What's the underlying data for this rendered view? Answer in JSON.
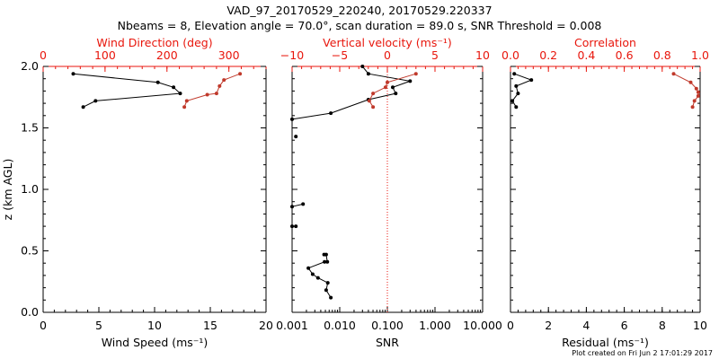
{
  "header": {
    "title_line1": "VAD_97_20170529_220240, 20170529.220337",
    "title_line2": "Nbeams = 8, Elevation angle = 70.0°, scan duration = 89.0 s, SNR Threshold = 0.008"
  },
  "footer": {
    "plot_created": "Plot created on Fri Jun  2 17:01:29 2017"
  },
  "colors": {
    "black_series": "#000000",
    "red_series": "#c0392b",
    "red_axis": "#e8160c",
    "guide_line": "#e8160c"
  },
  "chart_data": [
    {
      "type": "line",
      "panel": "left",
      "ylabel": "z (km AGL)",
      "ylim": [
        0.0,
        2.0
      ],
      "yticks": [
        0.0,
        0.5,
        1.0,
        1.5,
        2.0
      ],
      "ytick_labels": [
        "0.0",
        "0.5",
        "1.0",
        "1.5",
        "2.0"
      ],
      "grid": false,
      "bottom_axis": {
        "label": "Wind Speed (ms⁻¹)",
        "range": [
          0,
          20
        ],
        "ticks": [
          0,
          5,
          10,
          15,
          20
        ],
        "tick_labels": [
          "0",
          "5",
          "10",
          "15",
          "20"
        ]
      },
      "top_axis": {
        "label": "Wind Direction (deg)",
        "range": [
          0,
          360
        ],
        "ticks": [
          0,
          100,
          200,
          300
        ],
        "tick_labels": [
          "0",
          "100",
          "200",
          "300"
        ]
      },
      "series": [
        {
          "axis": "bottom",
          "color": "black",
          "points": [
            [
              2.7,
              1.94
            ],
            [
              10.3,
              1.87
            ],
            [
              11.7,
              1.83
            ],
            [
              12.3,
              1.78
            ],
            [
              4.7,
              1.72
            ],
            [
              3.6,
              1.67
            ]
          ]
        },
        {
          "axis": "top",
          "color": "red",
          "points": [
            [
              318,
              1.94
            ],
            [
              292,
              1.89
            ],
            [
              285,
              1.84
            ],
            [
              280,
              1.78
            ],
            [
              265,
              1.77
            ],
            [
              232,
              1.72
            ],
            [
              228,
              1.67
            ]
          ]
        }
      ]
    },
    {
      "type": "scatter",
      "panel": "middle",
      "grid": false,
      "bottom_axis": {
        "label": "SNR",
        "scale": "log",
        "range": [
          0.001,
          10
        ],
        "ticks": [
          0.001,
          0.01,
          0.1,
          1,
          10
        ],
        "tick_labels": [
          "0.001",
          "0.010",
          "0.100",
          "1.000",
          "10.000"
        ]
      },
      "top_axis": {
        "label": "Vertical velocity (ms⁻¹)",
        "range": [
          -10,
          10
        ],
        "ticks": [
          -10,
          -5,
          0,
          5,
          10
        ],
        "tick_labels": [
          "−10",
          "−5",
          "0",
          "5",
          "10"
        ]
      },
      "reference_line": {
        "x_snr": 0.1,
        "style": "dotted"
      },
      "series": [
        {
          "axis": "bottom",
          "color": "black",
          "segments": [
            [
              [
                0.03,
                2.0
              ],
              [
                0.04,
                1.94
              ],
              [
                0.3,
                1.88
              ],
              [
                0.13,
                1.83
              ],
              [
                0.15,
                1.78
              ],
              [
                0.04,
                1.73
              ],
              [
                0.0065,
                1.62
              ],
              [
                0.001,
                1.57
              ]
            ],
            [
              [
                0.0012,
                1.43
              ]
            ],
            [
              [
                0.001,
                0.86
              ],
              [
                0.0017,
                0.88
              ]
            ],
            [
              [
                0.001,
                0.7
              ],
              [
                0.0012,
                0.7
              ]
            ],
            [
              [
                0.0047,
                0.47
              ],
              [
                0.0052,
                0.47
              ],
              [
                0.0055,
                0.41
              ],
              [
                0.0048,
                0.41
              ],
              [
                0.0022,
                0.36
              ],
              [
                0.0027,
                0.31
              ],
              [
                0.0035,
                0.28
              ],
              [
                0.0056,
                0.24
              ],
              [
                0.0052,
                0.18
              ],
              [
                0.0065,
                0.12
              ]
            ]
          ]
        },
        {
          "axis": "top",
          "color": "red",
          "points": [
            [
              3.0,
              1.94
            ],
            [
              0.0,
              1.87
            ],
            [
              -0.2,
              1.83
            ],
            [
              -1.5,
              1.78
            ],
            [
              -1.9,
              1.72
            ],
            [
              -1.5,
              1.67
            ]
          ]
        }
      ]
    },
    {
      "type": "line",
      "panel": "right",
      "grid": false,
      "bottom_axis": {
        "label": "Residual (ms⁻¹)",
        "range": [
          0,
          10
        ],
        "ticks": [
          0,
          2,
          4,
          6,
          8,
          10
        ],
        "tick_labels": [
          "0",
          "2",
          "4",
          "6",
          "8",
          "10"
        ]
      },
      "top_axis": {
        "label": "Correlation",
        "range": [
          0.0,
          1.0
        ],
        "ticks": [
          0.0,
          0.2,
          0.4,
          0.6,
          0.8,
          1.0
        ],
        "tick_labels": [
          "0.0",
          "0.2",
          "0.4",
          "0.6",
          "0.8",
          "1.0"
        ]
      },
      "series": [
        {
          "axis": "bottom",
          "color": "black",
          "points": [
            [
              0.2,
              1.94
            ],
            [
              1.1,
              1.89
            ],
            [
              0.3,
              1.84
            ],
            [
              0.4,
              1.78
            ],
            [
              0.1,
              1.72
            ],
            [
              0.3,
              1.67
            ]
          ]
        },
        {
          "axis": "top",
          "color": "red",
          "points": [
            [
              0.86,
              1.94
            ],
            [
              0.95,
              1.87
            ],
            [
              0.98,
              1.82
            ],
            [
              0.99,
              1.79
            ],
            [
              0.99,
              1.76
            ],
            [
              0.97,
              1.72
            ],
            [
              0.96,
              1.67
            ]
          ]
        }
      ]
    }
  ]
}
